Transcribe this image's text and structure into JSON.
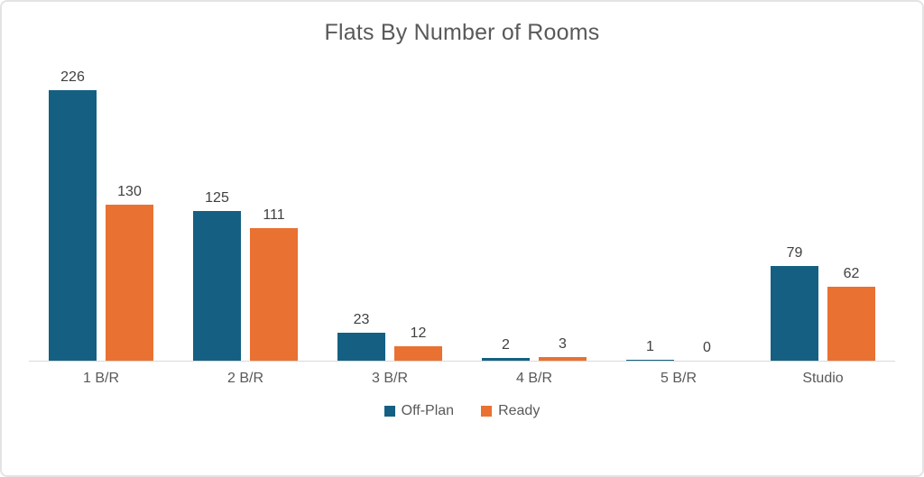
{
  "chart": {
    "title": "Flats By Number of Rooms"
  },
  "chart_data": {
    "type": "bar",
    "title": "Flats By Number of Rooms",
    "categories": [
      "1 B/R",
      "2 B/R",
      "3 B/R",
      "4 B/R",
      "5 B/R",
      "Studio"
    ],
    "series": [
      {
        "name": "Off-Plan",
        "color": "#156082",
        "values": [
          226,
          125,
          23,
          2,
          1,
          79
        ]
      },
      {
        "name": "Ready",
        "color": "#E97132",
        "values": [
          130,
          111,
          12,
          3,
          0,
          62
        ]
      }
    ],
    "xlabel": "",
    "ylabel": "",
    "ylim": [
      0,
      250
    ],
    "grid": false,
    "legend_position": "bottom",
    "data_labels": true
  },
  "colors": {
    "off_plan": "#156082",
    "ready": "#E97132",
    "title_text": "#595959",
    "data_label_text": "#404040",
    "axis_line": "#d9d9d9",
    "card_border": "#e4e4e4"
  }
}
